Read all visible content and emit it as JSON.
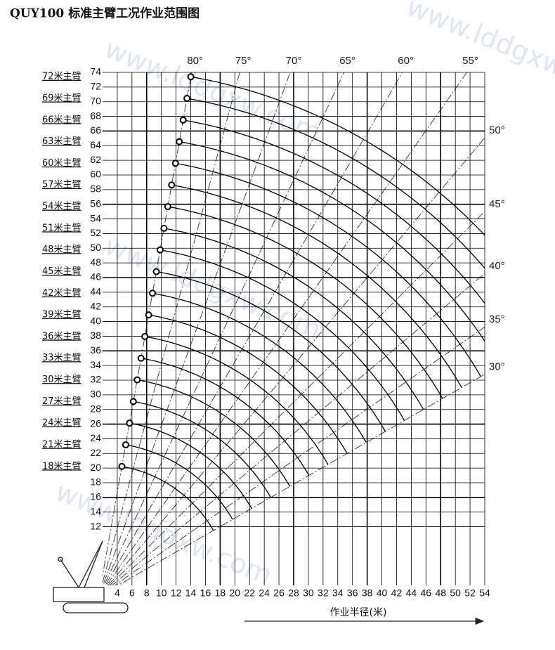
{
  "chart_data": {
    "type": "crane-range",
    "title": "QUY100 标准主臂工况作业范围图",
    "x_label": "作业半径(米)",
    "watermark": "www.lddgxw.com",
    "xlim": [
      2,
      54
    ],
    "ylim": [
      4,
      74
    ],
    "xticks": [
      4,
      6,
      8,
      10,
      12,
      14,
      16,
      18,
      20,
      22,
      24,
      26,
      28,
      30,
      32,
      34,
      36,
      38,
      40,
      42,
      44,
      46,
      48,
      50,
      52,
      54
    ],
    "yticks": [
      12,
      14,
      16,
      18,
      20,
      22,
      24,
      26,
      28,
      30,
      32,
      34,
      36,
      38,
      40,
      42,
      44,
      46,
      48,
      50,
      52,
      54,
      56,
      58,
      60,
      62,
      64,
      66,
      68,
      70,
      72,
      74
    ],
    "grid": true,
    "booms": {
      "labels": [
        "18米主臂",
        "21米主臂",
        "24米主臂",
        "27米主臂",
        "30米主臂",
        "33米主臂",
        "36米主臂",
        "39米主臂",
        "42米主臂",
        "45米主臂",
        "48米主臂",
        "51米主臂",
        "54米主臂",
        "57米主臂",
        "60米主臂",
        "63米主臂",
        "66米主臂",
        "69米主臂",
        "72米主臂"
      ],
      "values": [
        18,
        21,
        24,
        27,
        30,
        33,
        36,
        39,
        42,
        45,
        48,
        51,
        54,
        57,
        60,
        63,
        66,
        69,
        72
      ]
    },
    "angles": [
      {
        "value": 80,
        "label": "80°"
      },
      {
        "value": 75,
        "label": "75°"
      },
      {
        "value": 70,
        "label": "70°"
      },
      {
        "value": 65,
        "label": "65°"
      },
      {
        "value": 60,
        "label": "60°"
      },
      {
        "value": 55,
        "label": "55°"
      },
      {
        "value": 50,
        "label": "50°"
      },
      {
        "value": 45,
        "label": "45°"
      },
      {
        "value": 40,
        "label": "40°"
      },
      {
        "value": 35,
        "label": "35°"
      },
      {
        "value": 30,
        "label": "30°"
      }
    ]
  }
}
